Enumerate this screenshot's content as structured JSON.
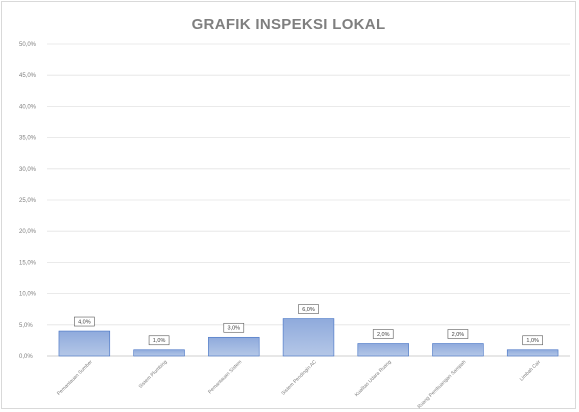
{
  "chart_data": {
    "type": "bar",
    "title": "GRAFIK INSPEKSI LOKAL",
    "categories": [
      "Pemantauan Sumber",
      "Sistem Plumbing",
      "Pemantauan Sistem",
      "Sistem Pendingin AC",
      "Kualitas Udara Ruang",
      "Ruang Pembuangan Sampah",
      "Limbah Cair"
    ],
    "values": [
      4.0,
      1.0,
      3.0,
      6.0,
      2.0,
      2.0,
      1.0
    ],
    "data_labels": [
      "4,0%",
      "1,0%",
      "3,0%",
      "6,0%",
      "2,0%",
      "2,0%",
      "1,0%"
    ],
    "ylim": [
      0,
      50
    ],
    "y_ticks": [
      0,
      5,
      10,
      15,
      20,
      25,
      30,
      35,
      40,
      45,
      50
    ],
    "y_tick_labels": [
      "0,0%",
      "5,0%",
      "10,0%",
      "15,0%",
      "20,0%",
      "25,0%",
      "30,0%",
      "35,0%",
      "40,0%",
      "45,0%",
      "50,0%"
    ],
    "grid": true,
    "legend": "none",
    "bar_color": "#8ea9db",
    "bar_edge_color": "#4472c4"
  }
}
